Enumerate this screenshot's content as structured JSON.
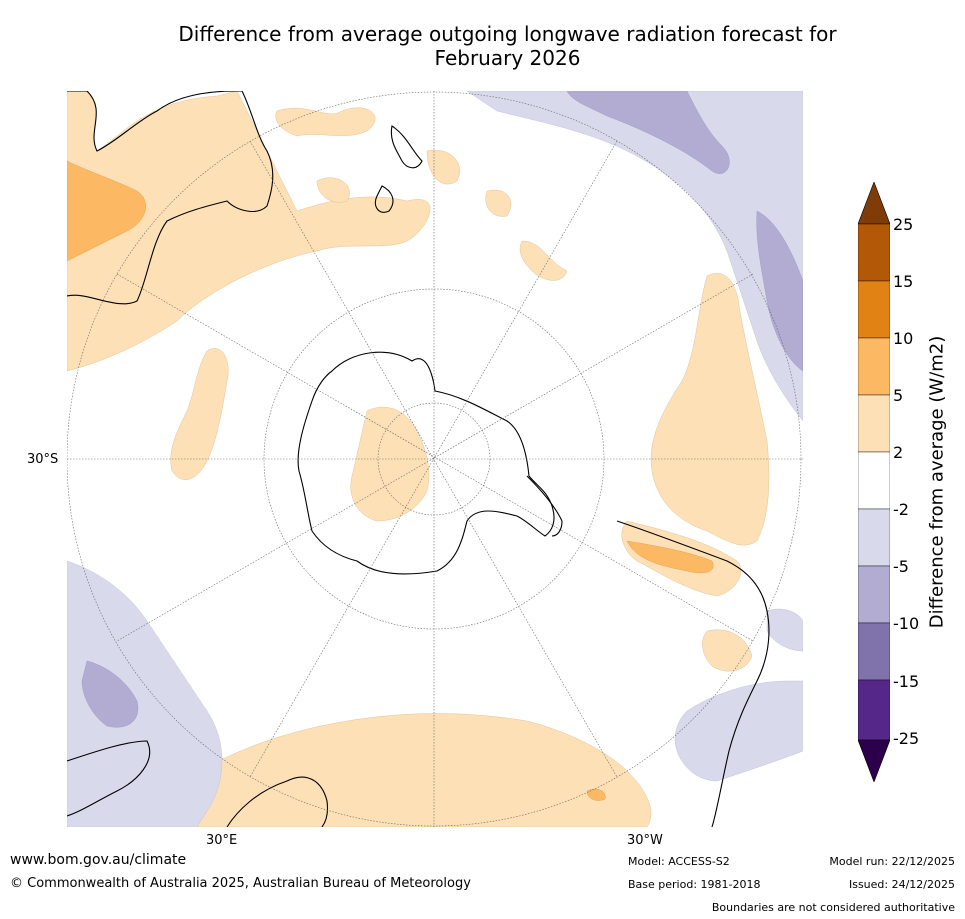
{
  "title": {
    "line1": "Difference from average outgoing longwave radiation forecast for",
    "line2": "February 2026"
  },
  "map": {
    "projection": "south-polar-stereographic",
    "lat_label": "30°S",
    "lon_labels": [
      "30°E",
      "30°W"
    ]
  },
  "colorbar": {
    "label": "Difference from average (W/m2)",
    "ticks": [
      "25",
      "15",
      "10",
      "5",
      "2",
      "-2",
      "-5",
      "-10",
      "-15",
      "-25"
    ],
    "bins": [
      {
        "range": ">25",
        "color": "#7f3b08"
      },
      {
        "range": "15 to 25",
        "color": "#b35806"
      },
      {
        "range": "10 to 15",
        "color": "#e08214"
      },
      {
        "range": "5 to 10",
        "color": "#fdb863"
      },
      {
        "range": "2 to 5",
        "color": "#fee0b6"
      },
      {
        "range": "-2 to 2",
        "color": "#ffffff"
      },
      {
        "range": "-5 to -2",
        "color": "#d8daeb"
      },
      {
        "range": "-10 to -5",
        "color": "#b2abd2"
      },
      {
        "range": "-15 to -10",
        "color": "#8073ac"
      },
      {
        "range": "-25 to -15",
        "color": "#542788"
      },
      {
        "range": "<-25",
        "color": "#2d004b"
      }
    ]
  },
  "footer": {
    "url": "www.bom.gov.au/climate",
    "copyright": "© Commonwealth of Australia 2025, Australian Bureau of Meteorology",
    "model": "Model: ACCESS-S2",
    "base_period": "Base period: 1981-2018",
    "model_run": "Model run: 22/12/2025",
    "issued": "Issued: 24/12/2025",
    "disclaimer": "Boundaries are not considered authoritative"
  }
}
